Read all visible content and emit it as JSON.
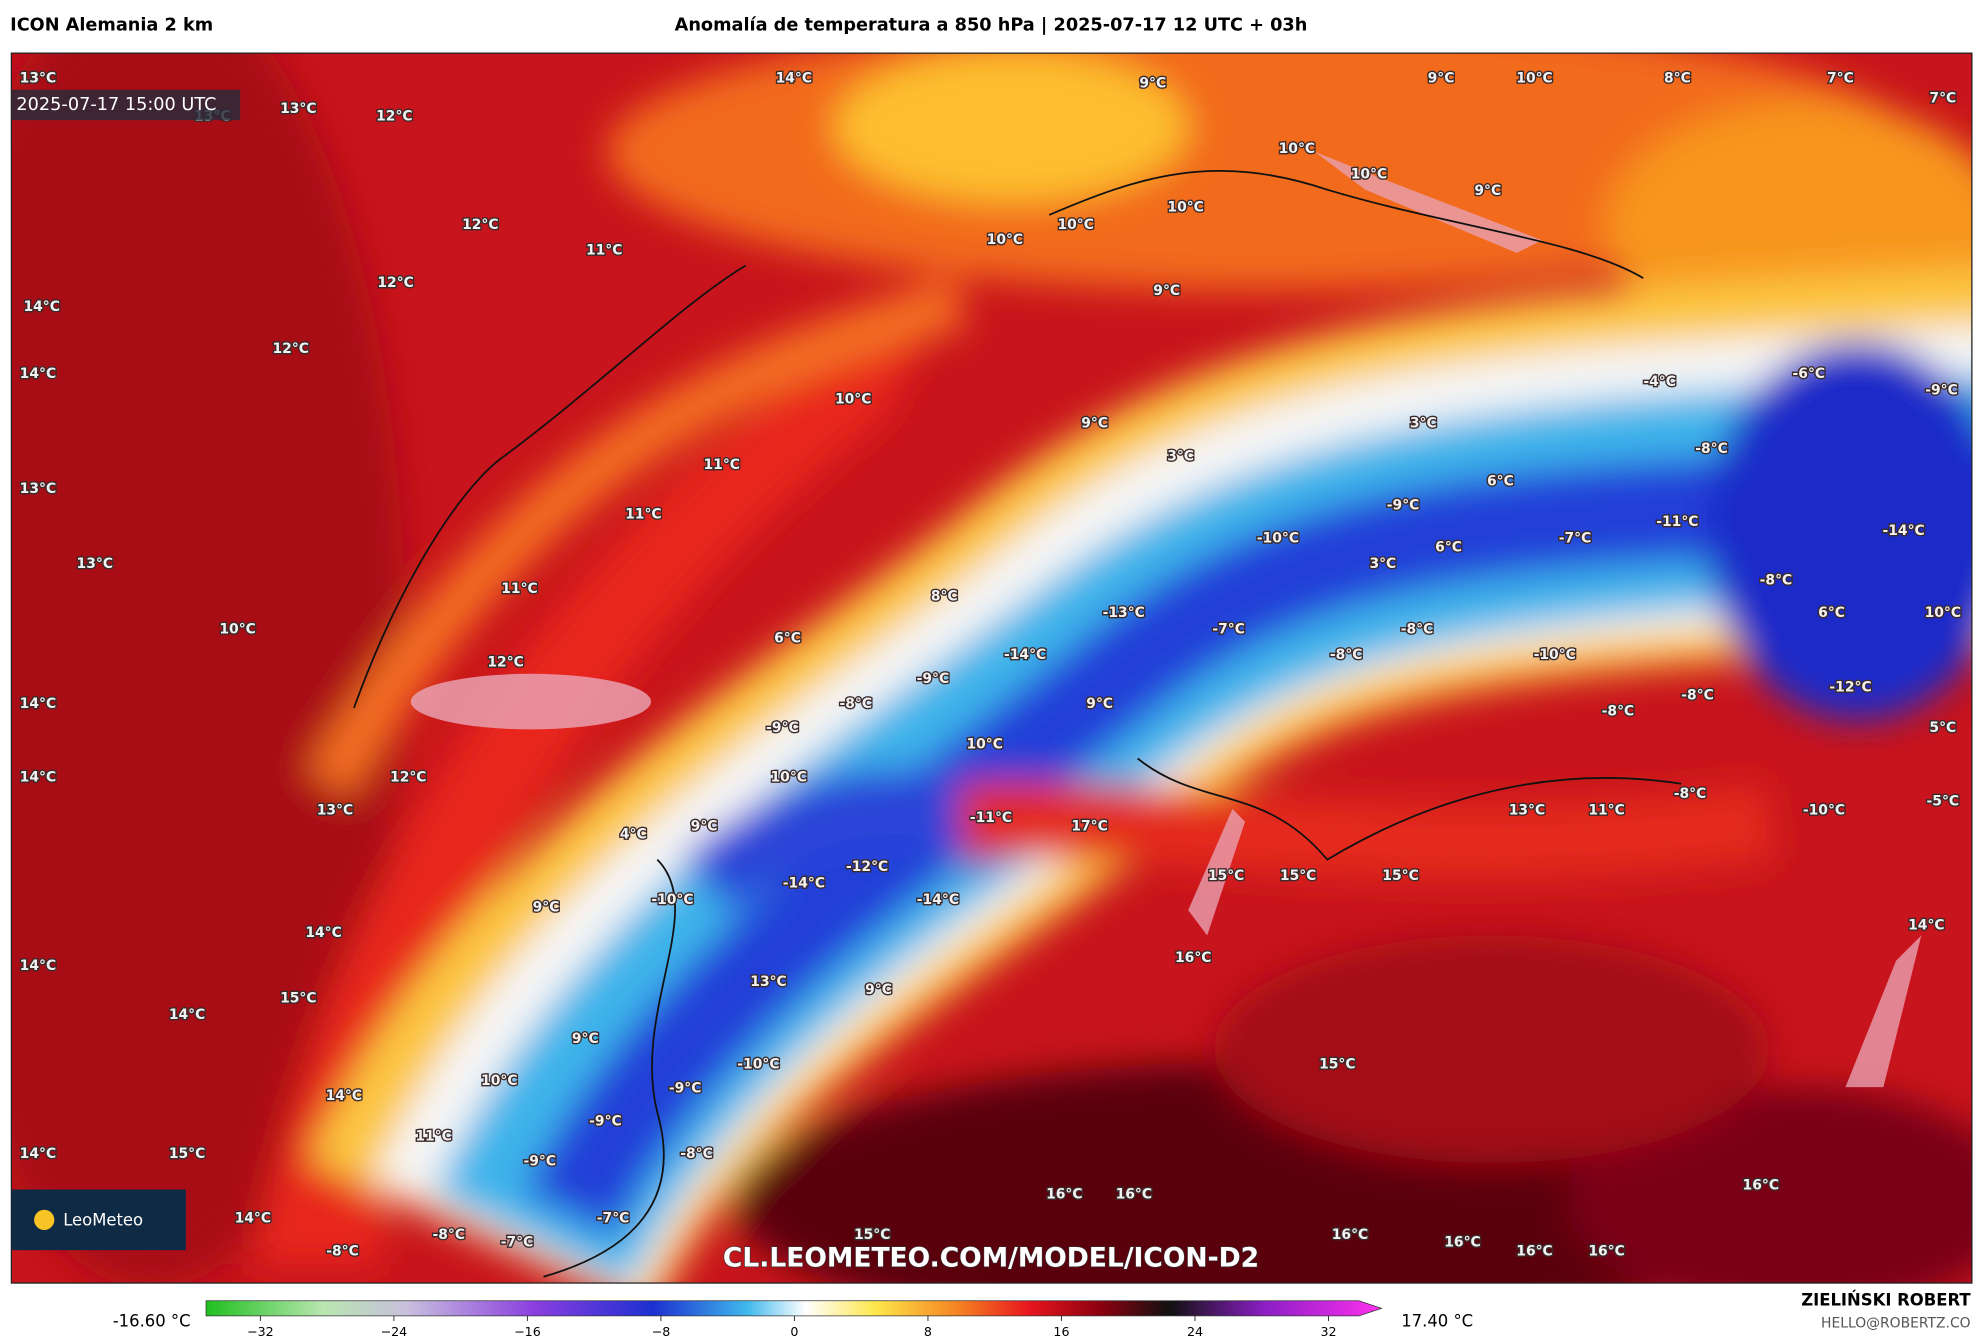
{
  "header": {
    "model": "ICON Alemania 2 km",
    "title": "Anomalía de temperatura a 850 hPa | 2025-07-17 12 UTC + 03h"
  },
  "timestamp": "2025-07-17 15:00 UTC",
  "logo": "LeoMeteo",
  "watermark": "CL.LEOMETEO.COM/MODEL/ICON-D2",
  "credit": {
    "name": "ZIELIŃSKI ROBERT",
    "email": "HELLO@ROBERTZ.CO"
  },
  "colorbar": {
    "min_label": "-16.60 °C",
    "max_label": "17.40 °C",
    "range": [
      -32,
      32
    ],
    "ticks": [
      {
        "value": -32,
        "label": "−32"
      },
      {
        "value": -24,
        "label": "−24"
      },
      {
        "value": -16,
        "label": "−16"
      },
      {
        "value": -8,
        "label": "−8"
      },
      0,
      8,
      16,
      24,
      32
    ]
  },
  "labels": [
    "13°C",
    "14°C",
    "9°C",
    "9°C",
    "10°C",
    "8°C",
    "7°C",
    "7°C",
    "13°C",
    "13°C",
    "12°C",
    "10°C",
    "10°C",
    "9°C",
    "10°C",
    "12°C",
    "10°C",
    "10°C",
    "11°C",
    "12°C",
    "9°C",
    "14°C",
    "12°C",
    "14°C",
    "-4°C",
    "-6°C",
    "-9°C",
    "10°C",
    "9°C",
    "3°C",
    "-8°C",
    "3°C",
    "11°C",
    "13°C",
    "6°C",
    "11°C",
    "-9°C",
    "-11°C",
    "-14°C",
    "-10°C",
    "-7°C",
    "6°C",
    "13°C",
    "3°C",
    "-8°C",
    "11°C",
    "8°C",
    "-13°C",
    "6°C",
    "10°C",
    "10°C",
    "-7°C",
    "-8°C",
    "6°C",
    "-14°C",
    "-8°C",
    "-10°C",
    "12°C",
    "-9°C",
    "-12°C",
    "14°C",
    "-8°C",
    "-8°C",
    "9°C",
    "-8°C",
    "-9°C",
    "5°C",
    "10°C",
    "14°C",
    "10°C",
    "12°C",
    "-8°C",
    "13°C",
    "11°C",
    "-10°C",
    "-5°C",
    "13°C",
    "-11°C",
    "17°C",
    "9°C",
    "4°C",
    "-12°C",
    "-14°C",
    "15°C",
    "15°C",
    "15°C",
    "-10°C",
    "-14°C",
    "9°C",
    "14°C",
    "14°C",
    "16°C",
    "14°C",
    "13°C",
    "9°C",
    "15°C",
    "14°C",
    "15°C",
    "-10°C",
    "9°C",
    "10°C",
    "-9°C",
    "14°C",
    "-9°C",
    "11°C",
    "-8°C",
    "15°C",
    "-9°C",
    "14°C",
    "16°C",
    "16°C",
    "16°C",
    "14°C",
    "-7°C",
    "-8°C",
    "15°C",
    "16°C",
    "-7°C",
    "-8°C",
    "16°C",
    "16°C",
    "16°C"
  ]
}
